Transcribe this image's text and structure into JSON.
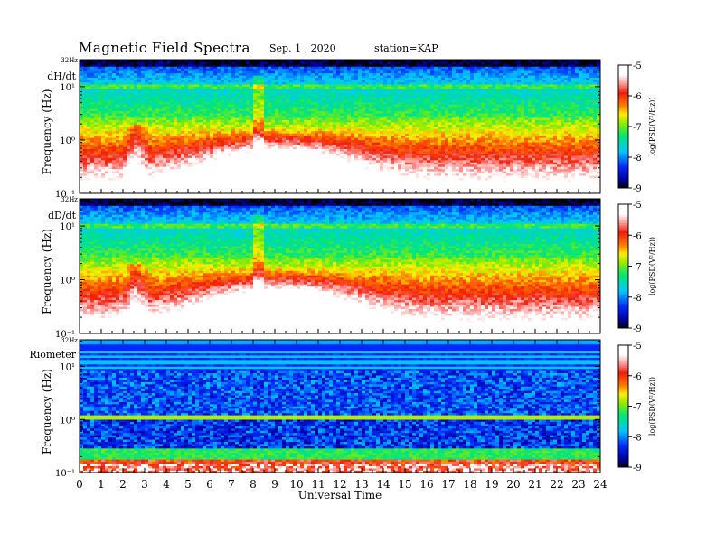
{
  "header": {
    "title": "Magnetic  Field  Spectra",
    "date": "Sep. 1  , 2020",
    "station": "station=KAP"
  },
  "chart_data": [
    {
      "type": "heatmap",
      "panel_label": "dH/dt",
      "ylabel": "Frequency  (Hz)",
      "xlabel": "",
      "xlim": [
        0,
        24
      ],
      "ylim_hz": [
        0.1,
        32
      ],
      "y_scale": "log",
      "y_ticks": [
        "10¹",
        "10⁰",
        "10⁻¹"
      ],
      "y_top_label": "32Hz",
      "colorbar": {
        "label": "log(PSD(V²/Hz))",
        "range": [
          -9,
          -5
        ],
        "ticks": [
          "-5",
          "-6",
          "-7",
          "-8",
          "-9"
        ]
      }
    },
    {
      "type": "heatmap",
      "panel_label": "dD/dt",
      "ylabel": "Frequency  (Hz)",
      "xlabel": "",
      "xlim": [
        0,
        24
      ],
      "ylim_hz": [
        0.1,
        32
      ],
      "y_scale": "log",
      "y_ticks": [
        "10¹",
        "10⁰",
        "10⁻¹"
      ],
      "y_top_label": "32Hz",
      "colorbar": {
        "label": "log(PSD(V²/Hz))",
        "range": [
          -9,
          -5
        ],
        "ticks": [
          "-5",
          "-6",
          "-7",
          "-8",
          "-9"
        ]
      }
    },
    {
      "type": "heatmap",
      "panel_label": "Riometer",
      "ylabel": "Frequency  (Hz)",
      "xlabel": "Universal  Time",
      "xlim": [
        0,
        24
      ],
      "x_ticks": [
        "0",
        "1",
        "2",
        "3",
        "4",
        "5",
        "6",
        "7",
        "8",
        "9",
        "10",
        "11",
        "12",
        "13",
        "14",
        "15",
        "16",
        "17",
        "18",
        "19",
        "20",
        "21",
        "22",
        "23",
        "24"
      ],
      "ylim_hz": [
        0.1,
        32
      ],
      "y_scale": "log",
      "y_ticks": [
        "10¹",
        "10⁰",
        "10⁻¹"
      ],
      "y_top_label": "32Hz",
      "colorbar": {
        "label": "log(PSD(V²/Hz))",
        "range": [
          -9,
          -5
        ],
        "ticks": [
          "-5",
          "-6",
          "-7",
          "-8",
          "-9"
        ]
      }
    }
  ]
}
